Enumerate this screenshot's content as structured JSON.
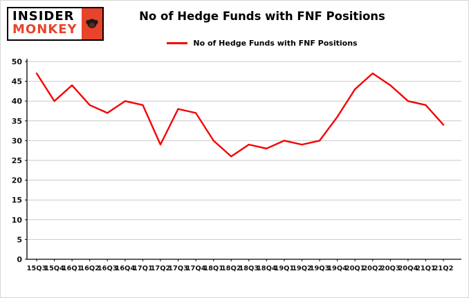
{
  "logo": {
    "line1": "INSIDER",
    "line2": "MONKEY"
  },
  "header": {
    "title": "No of Hedge Funds with FNF Positions"
  },
  "legend": {
    "label": "No of Hedge Funds with FNF Positions"
  },
  "colors": {
    "line": "#f40000",
    "logo_accent": "#e8432b",
    "logo_monkey": "#1a1a1a",
    "grid": "#c9c9c9",
    "axis": "#000000"
  },
  "chart_data": {
    "type": "line",
    "title": "No of Hedge Funds with FNF Positions",
    "categories": [
      "15Q3",
      "15Q4",
      "16Q1",
      "16Q2",
      "16Q3",
      "16Q4",
      "17Q1",
      "17Q2",
      "17Q3",
      "17Q4",
      "18Q1",
      "18Q2",
      "18Q3",
      "18Q4",
      "19Q1",
      "19Q2",
      "19Q3",
      "19Q4",
      "20Q1",
      "20Q2",
      "20Q3",
      "20Q4",
      "21Q1",
      "21Q2"
    ],
    "series": [
      {
        "name": "No of Hedge Funds with FNF Positions",
        "values": [
          47,
          40,
          44,
          39,
          37,
          40,
          39,
          29,
          38,
          37,
          30,
          26,
          29,
          28,
          30,
          29,
          30,
          36,
          43,
          47,
          44,
          40,
          39,
          34
        ]
      }
    ],
    "xlabel": "",
    "ylabel": "",
    "ylim": [
      0,
      50
    ],
    "yticks": [
      0,
      5,
      10,
      15,
      20,
      25,
      30,
      35,
      40,
      45,
      50
    ],
    "grid": "horizontal",
    "legend_position": "top"
  }
}
